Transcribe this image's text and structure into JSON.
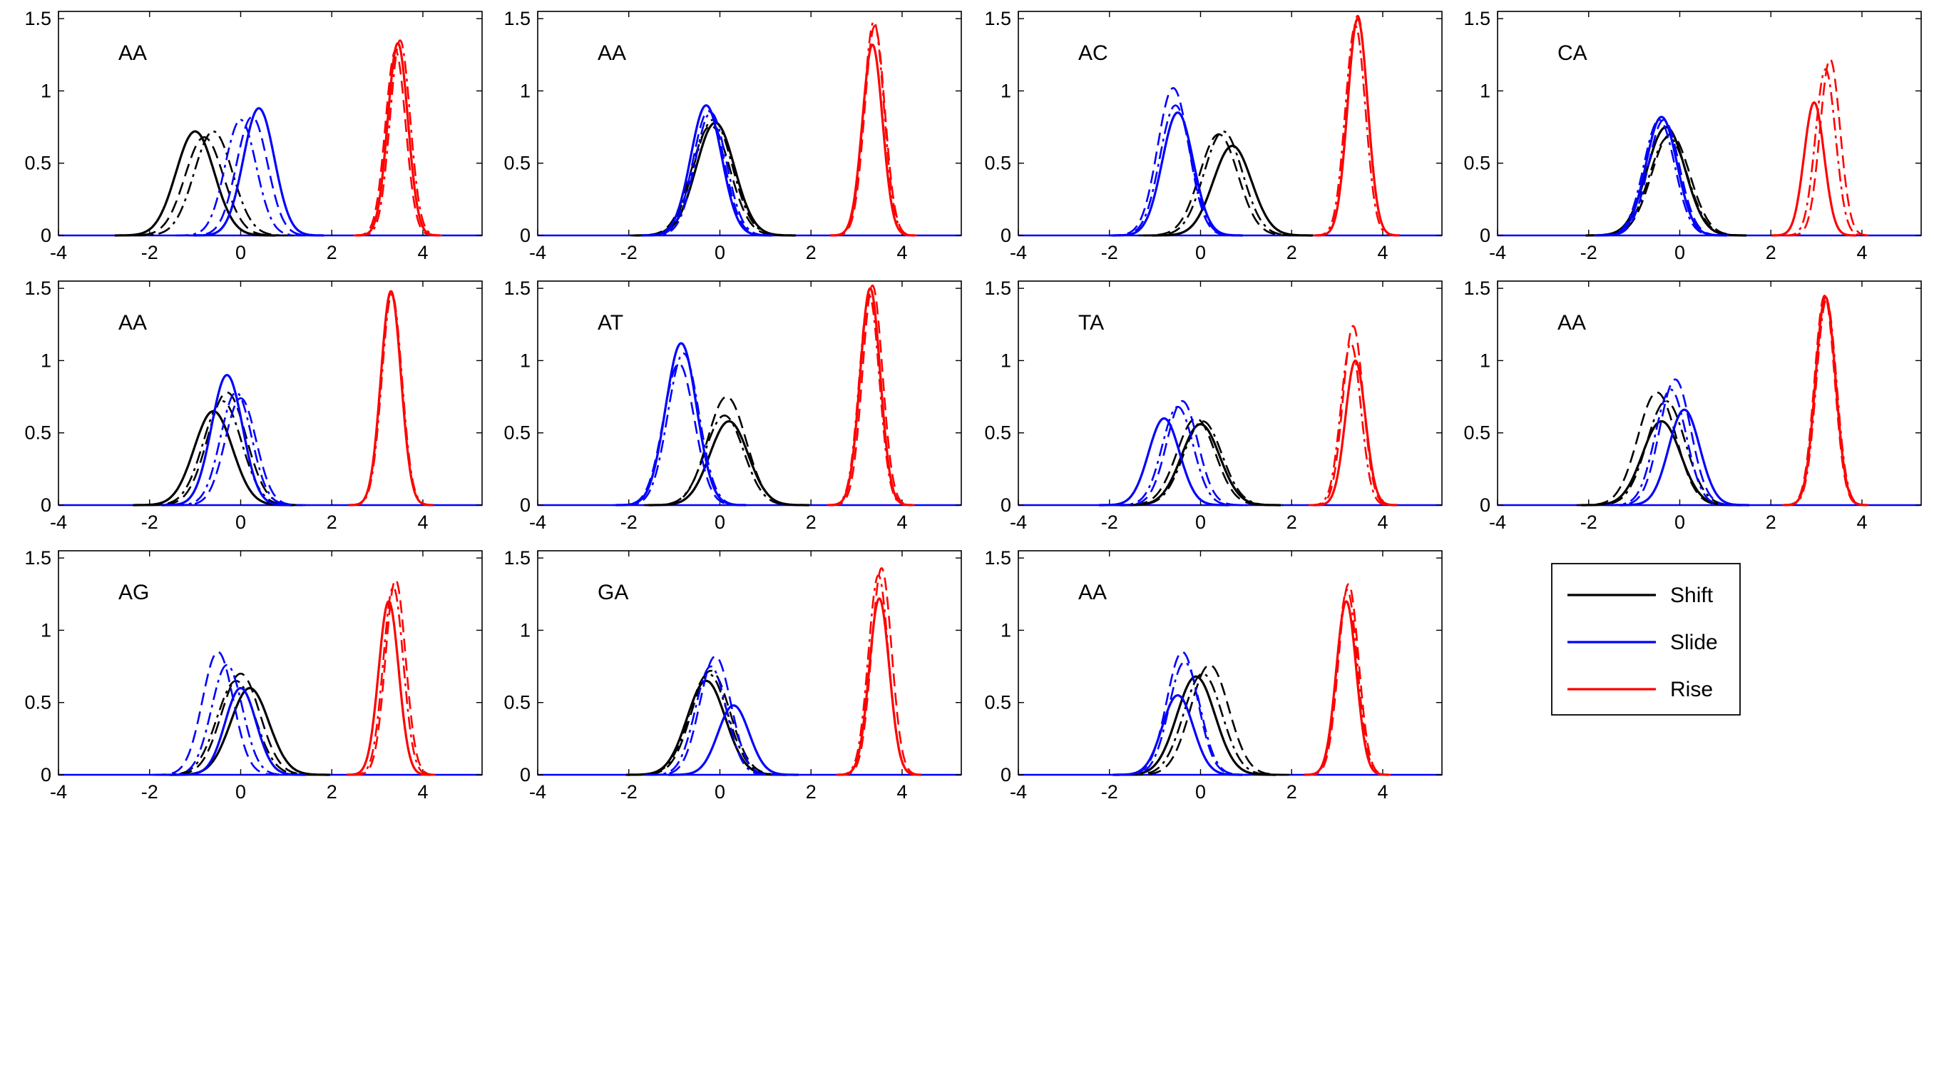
{
  "figure": {
    "legend": [
      {
        "name": "Shift",
        "color": "#000000"
      },
      {
        "name": "Slide",
        "color": "#0000ff"
      },
      {
        "name": "Rise",
        "color": "#ff0000"
      }
    ],
    "legend_position": "bottom-right empty grid cell"
  },
  "chart_data": [
    {
      "type": "line",
      "panel_label": "AA",
      "xlim": [
        -4,
        5.3
      ],
      "ylim": [
        0,
        1.55
      ],
      "xticks": [
        "-4",
        "-2",
        "0",
        "2",
        "4"
      ],
      "yticks": [
        "0",
        "0.5",
        "1",
        "1.5"
      ],
      "series": [
        {
          "name": "Shift",
          "color": "#000000",
          "peaks": [
            [
              -1.0,
              0.72
            ],
            [
              -0.8,
              0.68
            ],
            [
              -0.6,
              0.72
            ]
          ]
        },
        {
          "name": "Slide",
          "color": "#0000ff",
          "peaks": [
            [
              0.4,
              0.88
            ],
            [
              0.25,
              0.82
            ],
            [
              0.0,
              0.8
            ]
          ]
        },
        {
          "name": "Rise",
          "color": "#ff0000",
          "peaks": [
            [
              3.45,
              1.33
            ],
            [
              3.4,
              1.28
            ],
            [
              3.5,
              1.35
            ]
          ]
        }
      ]
    },
    {
      "type": "line",
      "panel_label": "AA",
      "xlim": [
        -4,
        5.3
      ],
      "ylim": [
        0,
        1.55
      ],
      "xticks": [
        "-4",
        "-2",
        "0",
        "2",
        "4"
      ],
      "yticks": [
        "0",
        "0.5",
        "1",
        "1.5"
      ],
      "series": [
        {
          "name": "Shift",
          "color": "#000000",
          "peaks": [
            [
              -0.1,
              0.78
            ],
            [
              -0.2,
              0.76
            ],
            [
              -0.15,
              0.8
            ]
          ]
        },
        {
          "name": "Slide",
          "color": "#0000ff",
          "peaks": [
            [
              -0.3,
              0.9
            ],
            [
              -0.25,
              0.86
            ],
            [
              -0.2,
              0.85
            ]
          ]
        },
        {
          "name": "Rise",
          "color": "#ff0000",
          "peaks": [
            [
              3.35,
              1.32
            ],
            [
              3.4,
              1.45
            ],
            [
              3.38,
              1.48
            ]
          ]
        }
      ]
    },
    {
      "type": "line",
      "panel_label": "AC",
      "xlim": [
        -4,
        5.3
      ],
      "ylim": [
        0,
        1.55
      ],
      "xticks": [
        "-4",
        "-2",
        "0",
        "2",
        "4"
      ],
      "yticks": [
        "0",
        "0.5",
        "1",
        "1.5"
      ],
      "series": [
        {
          "name": "Shift",
          "color": "#000000",
          "peaks": [
            [
              0.7,
              0.62
            ],
            [
              0.4,
              0.7
            ],
            [
              0.5,
              0.72
            ]
          ]
        },
        {
          "name": "Slide",
          "color": "#0000ff",
          "peaks": [
            [
              -0.5,
              0.85
            ],
            [
              -0.6,
              1.02
            ],
            [
              -0.55,
              0.9
            ]
          ]
        },
        {
          "name": "Rise",
          "color": "#ff0000",
          "peaks": [
            [
              3.45,
              1.5
            ],
            [
              3.45,
              1.52
            ],
            [
              3.4,
              1.45
            ]
          ]
        }
      ]
    },
    {
      "type": "line",
      "panel_label": "CA",
      "xlim": [
        -4,
        5.3
      ],
      "ylim": [
        0,
        1.55
      ],
      "xticks": [
        "-4",
        "-2",
        "0",
        "2",
        "4"
      ],
      "yticks": [
        "0",
        "0.5",
        "1",
        "1.5"
      ],
      "series": [
        {
          "name": "Shift",
          "color": "#000000",
          "peaks": [
            [
              -0.3,
              0.75
            ],
            [
              -0.2,
              0.7
            ],
            [
              -0.25,
              0.68
            ]
          ]
        },
        {
          "name": "Slide",
          "color": "#0000ff",
          "peaks": [
            [
              -0.4,
              0.82
            ],
            [
              -0.35,
              0.8
            ],
            [
              -0.45,
              0.8
            ]
          ]
        },
        {
          "name": "Rise",
          "color": "#ff0000",
          "peaks": [
            [
              2.95,
              0.92
            ],
            [
              3.3,
              1.22
            ],
            [
              3.2,
              1.15
            ]
          ]
        }
      ]
    },
    {
      "type": "line",
      "panel_label": "AA",
      "xlim": [
        -4,
        5.3
      ],
      "ylim": [
        0,
        1.55
      ],
      "xticks": [
        "-4",
        "-2",
        "0",
        "2",
        "4"
      ],
      "yticks": [
        "0",
        "0.5",
        "1",
        "1.5"
      ],
      "series": [
        {
          "name": "Shift",
          "color": "#000000",
          "peaks": [
            [
              -0.6,
              0.65
            ],
            [
              -0.3,
              0.78
            ],
            [
              -0.4,
              0.72
            ]
          ]
        },
        {
          "name": "Slide",
          "color": "#0000ff",
          "peaks": [
            [
              -0.3,
              0.9
            ],
            [
              0.0,
              0.74
            ],
            [
              -0.1,
              0.78
            ]
          ]
        },
        {
          "name": "Rise",
          "color": "#ff0000",
          "peaks": [
            [
              3.3,
              1.48
            ],
            [
              3.3,
              1.47
            ],
            [
              3.32,
              1.46
            ]
          ]
        }
      ]
    },
    {
      "type": "line",
      "panel_label": "AT",
      "xlim": [
        -4,
        5.3
      ],
      "ylim": [
        0,
        1.55
      ],
      "xticks": [
        "-4",
        "-2",
        "0",
        "2",
        "4"
      ],
      "yticks": [
        "0",
        "0.5",
        "1",
        "1.5"
      ],
      "series": [
        {
          "name": "Shift",
          "color": "#000000",
          "peaks": [
            [
              0.2,
              0.58
            ],
            [
              0.15,
              0.75
            ],
            [
              0.1,
              0.62
            ]
          ]
        },
        {
          "name": "Slide",
          "color": "#0000ff",
          "peaks": [
            [
              -0.85,
              1.12
            ],
            [
              -0.9,
              0.98
            ],
            [
              -0.8,
              1.05
            ]
          ]
        },
        {
          "name": "Rise",
          "color": "#ff0000",
          "peaks": [
            [
              3.3,
              1.5
            ],
            [
              3.35,
              1.52
            ],
            [
              3.28,
              1.45
            ]
          ]
        }
      ]
    },
    {
      "type": "line",
      "panel_label": "TA",
      "xlim": [
        -4,
        5.3
      ],
      "ylim": [
        0,
        1.55
      ],
      "xticks": [
        "-4",
        "-2",
        "0",
        "2",
        "4"
      ],
      "yticks": [
        "0",
        "0.5",
        "1",
        "1.5"
      ],
      "series": [
        {
          "name": "Shift",
          "color": "#000000",
          "peaks": [
            [
              0.0,
              0.56
            ],
            [
              -0.1,
              0.6
            ],
            [
              0.05,
              0.58
            ]
          ]
        },
        {
          "name": "Slide",
          "color": "#0000ff",
          "peaks": [
            [
              -0.8,
              0.6
            ],
            [
              -0.4,
              0.72
            ],
            [
              -0.5,
              0.68
            ]
          ]
        },
        {
          "name": "Rise",
          "color": "#ff0000",
          "peaks": [
            [
              3.4,
              1.0
            ],
            [
              3.35,
              1.24
            ],
            [
              3.3,
              1.12
            ]
          ]
        }
      ]
    },
    {
      "type": "line",
      "panel_label": "AA",
      "xlim": [
        -4,
        5.3
      ],
      "ylim": [
        0,
        1.55
      ],
      "xticks": [
        "-4",
        "-2",
        "0",
        "2",
        "4"
      ],
      "yticks": [
        "0",
        "0.5",
        "1",
        "1.5"
      ],
      "series": [
        {
          "name": "Shift",
          "color": "#000000",
          "peaks": [
            [
              -0.4,
              0.58
            ],
            [
              -0.5,
              0.78
            ],
            [
              -0.3,
              0.72
            ]
          ]
        },
        {
          "name": "Slide",
          "color": "#0000ff",
          "peaks": [
            [
              0.1,
              0.66
            ],
            [
              -0.1,
              0.87
            ],
            [
              -0.2,
              0.8
            ]
          ]
        },
        {
          "name": "Rise",
          "color": "#ff0000",
          "peaks": [
            [
              3.2,
              1.44
            ],
            [
              3.18,
              1.45
            ],
            [
              3.22,
              1.42
            ]
          ]
        }
      ]
    },
    {
      "type": "line",
      "panel_label": "AG",
      "xlim": [
        -4,
        5.3
      ],
      "ylim": [
        0,
        1.55
      ],
      "xticks": [
        "-4",
        "-2",
        "0",
        "2",
        "4"
      ],
      "yticks": [
        "0",
        "0.5",
        "1",
        "1.5"
      ],
      "series": [
        {
          "name": "Shift",
          "color": "#000000",
          "peaks": [
            [
              0.2,
              0.6
            ],
            [
              0.0,
              0.7
            ],
            [
              -0.1,
              0.65
            ]
          ]
        },
        {
          "name": "Slide",
          "color": "#0000ff",
          "peaks": [
            [
              0.0,
              0.6
            ],
            [
              -0.5,
              0.85
            ],
            [
              -0.3,
              0.76
            ]
          ]
        },
        {
          "name": "Rise",
          "color": "#ff0000",
          "peaks": [
            [
              3.25,
              1.2
            ],
            [
              3.4,
              1.35
            ],
            [
              3.35,
              1.3
            ]
          ]
        }
      ]
    },
    {
      "type": "line",
      "panel_label": "GA",
      "xlim": [
        -4,
        5.3
      ],
      "ylim": [
        0,
        1.55
      ],
      "xticks": [
        "-4",
        "-2",
        "0",
        "2",
        "4"
      ],
      "yticks": [
        "0",
        "0.5",
        "1",
        "1.5"
      ],
      "series": [
        {
          "name": "Shift",
          "color": "#000000",
          "peaks": [
            [
              -0.3,
              0.65
            ],
            [
              -0.2,
              0.72
            ],
            [
              -0.25,
              0.7
            ]
          ]
        },
        {
          "name": "Slide",
          "color": "#0000ff",
          "peaks": [
            [
              0.3,
              0.48
            ],
            [
              -0.1,
              0.82
            ],
            [
              -0.2,
              0.75
            ]
          ]
        },
        {
          "name": "Rise",
          "color": "#ff0000",
          "peaks": [
            [
              3.5,
              1.22
            ],
            [
              3.55,
              1.43
            ],
            [
              3.48,
              1.38
            ]
          ]
        }
      ]
    },
    {
      "type": "line",
      "panel_label": "AA",
      "xlim": [
        -4,
        5.3
      ],
      "ylim": [
        0,
        1.55
      ],
      "xticks": [
        "-4",
        "-2",
        "0",
        "2",
        "4"
      ],
      "yticks": [
        "0",
        "0.5",
        "1",
        "1.5"
      ],
      "series": [
        {
          "name": "Shift",
          "color": "#000000",
          "peaks": [
            [
              -0.1,
              0.68
            ],
            [
              0.2,
              0.76
            ],
            [
              0.05,
              0.7
            ]
          ]
        },
        {
          "name": "Slide",
          "color": "#0000ff",
          "peaks": [
            [
              -0.5,
              0.55
            ],
            [
              -0.4,
              0.85
            ],
            [
              -0.35,
              0.78
            ]
          ]
        },
        {
          "name": "Rise",
          "color": "#ff0000",
          "peaks": [
            [
              3.2,
              1.2
            ],
            [
              3.25,
              1.32
            ],
            [
              3.22,
              1.28
            ]
          ]
        }
      ]
    }
  ]
}
